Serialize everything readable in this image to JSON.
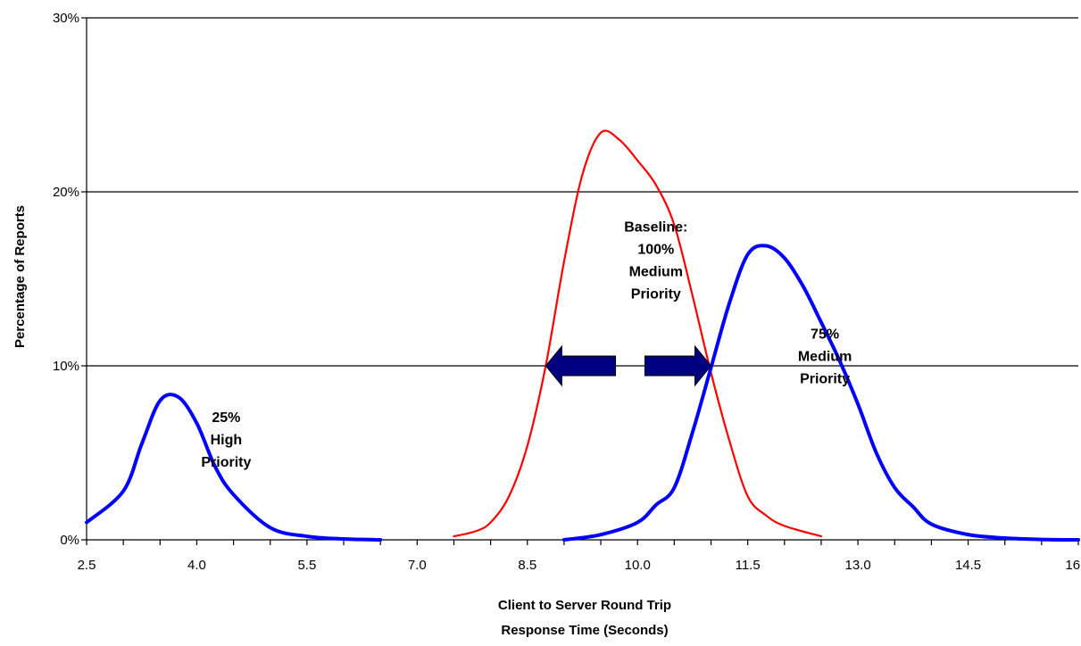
{
  "chart_data": {
    "type": "line",
    "title": "",
    "xlabel_lines": [
      "Client to Server Round Trip",
      "Response Time (Seconds)"
    ],
    "ylabel": "Percentage of Reports",
    "xlim": [
      2.5,
      16.0
    ],
    "ylim": [
      0,
      30
    ],
    "x_ticks": [
      "2.5",
      "4.0",
      "5.5",
      "7.0",
      "8.5",
      "10.0",
      "11.5",
      "13.0",
      "14.5",
      "16.0"
    ],
    "x_tick_values": [
      2.5,
      4.0,
      5.5,
      7.0,
      8.5,
      10.0,
      11.5,
      13.0,
      14.5,
      16.0
    ],
    "y_ticks": [
      "0%",
      "10%",
      "20%",
      "30%"
    ],
    "y_tick_values": [
      0,
      10,
      20,
      30
    ],
    "gridlines": "horizontal",
    "legend": "none",
    "series": [
      {
        "color": "#0000ff",
        "x": [
          2.5,
          3.0,
          3.25,
          3.5,
          3.75,
          4.0,
          4.25,
          4.5,
          5.0,
          5.5,
          6.0,
          6.5
        ],
        "y": [
          1.0,
          2.8,
          5.5,
          8.0,
          8.2,
          6.7,
          4.2,
          2.6,
          0.7,
          0.2,
          0.05,
          0.0
        ]
      },
      {
        "color": "#ff0000",
        "x": [
          7.5,
          7.8,
          8.0,
          8.25,
          8.5,
          8.75,
          9.0,
          9.25,
          9.5,
          9.75,
          10.0,
          10.25,
          10.5,
          10.75,
          11.0,
          11.25,
          11.5,
          11.75,
          12.0,
          12.5
        ],
        "y": [
          0.2,
          0.5,
          1.0,
          2.5,
          5.4,
          10.0,
          16.0,
          21.0,
          23.4,
          23.0,
          21.8,
          20.4,
          18.1,
          14.0,
          9.6,
          5.7,
          2.5,
          1.4,
          0.8,
          0.2
        ]
      },
      {
        "color": "#0000ff",
        "x": [
          9.0,
          9.5,
          10.0,
          10.25,
          10.5,
          10.75,
          11.0,
          11.25,
          11.5,
          11.75,
          12.0,
          12.25,
          12.5,
          12.75,
          13.0,
          13.25,
          13.5,
          13.75,
          14.0,
          14.5,
          15.0,
          15.5,
          16.0
        ],
        "y": [
          0.0,
          0.3,
          1.0,
          2.0,
          3.0,
          6.2,
          9.9,
          13.6,
          16.4,
          16.9,
          16.2,
          14.6,
          12.5,
          10.3,
          7.8,
          5.0,
          3.0,
          1.9,
          0.9,
          0.3,
          0.1,
          0.02,
          0.0
        ]
      }
    ],
    "annotations": [
      {
        "lines": [
          "25%",
          "High",
          "Priority"
        ],
        "x": 4.4,
        "y": 5.8
      },
      {
        "lines": [
          "Baseline:",
          "100%",
          "Medium",
          "Priority"
        ],
        "x": 10.25,
        "y": 16.1
      },
      {
        "lines": [
          "75%",
          "Medium",
          "Priority"
        ],
        "x": 12.55,
        "y": 10.6
      }
    ],
    "arrows": [
      {
        "direction": "left",
        "x_tip": 8.75,
        "x_tail": 9.7,
        "y": 10.0,
        "color": "#000080"
      },
      {
        "direction": "right",
        "x_tail": 10.1,
        "x_tip": 11.0,
        "y": 10.0,
        "color": "#000080"
      }
    ]
  }
}
